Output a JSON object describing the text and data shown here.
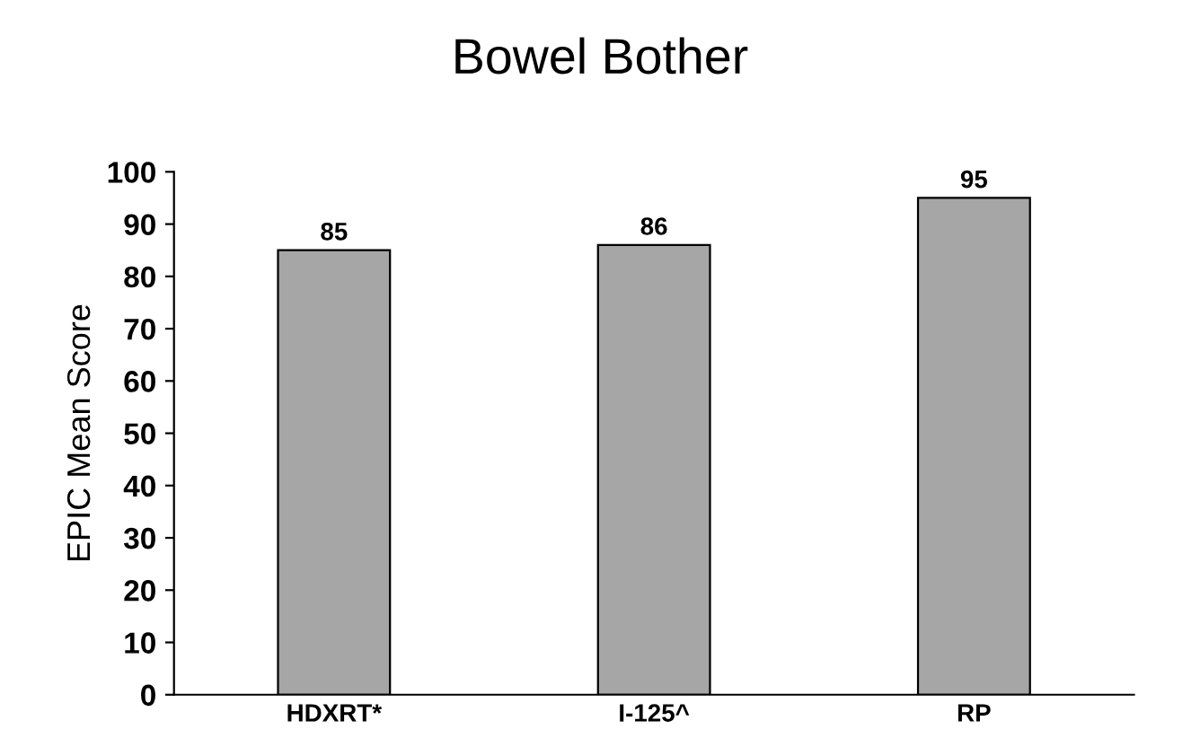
{
  "chart_data": {
    "type": "bar",
    "title": "Bowel Bother",
    "ylabel": "EPIC Mean Score",
    "categories": [
      "HDXRT*",
      "I-125^",
      "RP"
    ],
    "values": [
      85,
      86,
      95
    ],
    "color": "#a6a6a6",
    "ylim": [
      0,
      100
    ],
    "yticks": [
      0,
      10,
      20,
      30,
      40,
      50,
      60,
      70,
      80,
      90,
      100
    ],
    "data_labels": true,
    "grid": false,
    "legend": false
  }
}
